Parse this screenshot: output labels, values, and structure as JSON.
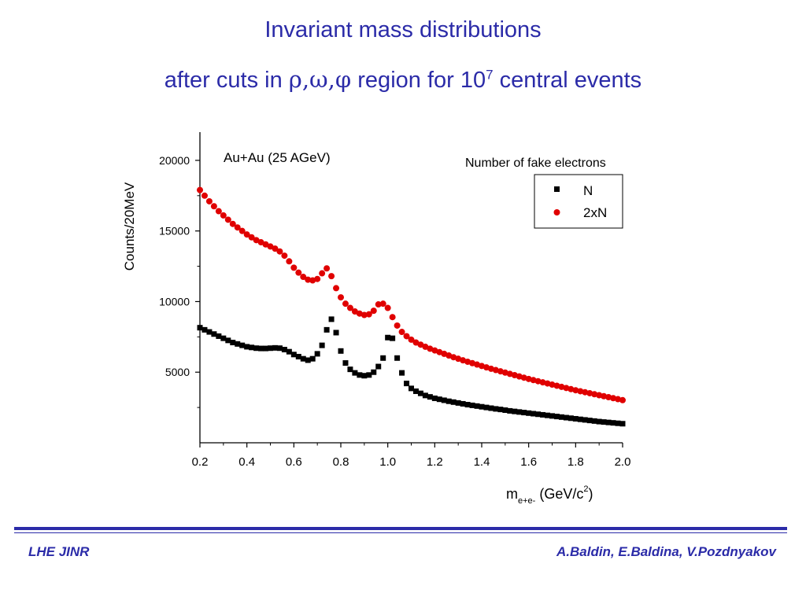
{
  "header": {
    "title_line1": "Invariant mass distributions",
    "title_line2_prefix": "after cuts in ",
    "title_greek": "ρ,ω,φ",
    "title_line2_mid": " region for 10",
    "title_exponent": "7",
    "title_line2_suffix": " central events"
  },
  "footer": {
    "left": "LHE JINR",
    "right": "A.Baldin, E.Baldina, V.Pozdnyakov"
  },
  "colors": {
    "title": "#2b2ba8",
    "series_N": "#000000",
    "series_2xN": "#e00000"
  },
  "chart_data": {
    "type": "scatter",
    "annotation": "Au+Au (25 AGeV)",
    "ylabel": "Counts/20MeV",
    "xlabel_main": "m",
    "xlabel_sub": "e+e-",
    "xlabel_unit": " (GeV/c",
    "xlabel_sup": "2",
    "xlabel_close": ")",
    "xlim": [
      0.2,
      2.0
    ],
    "ylim": [
      0,
      22000
    ],
    "xticks": [
      "0.2",
      "0.4",
      "0.6",
      "0.8",
      "1.0",
      "1.2",
      "1.4",
      "1.6",
      "1.8",
      "2.0"
    ],
    "yticks": [
      "5000",
      "10000",
      "15000",
      "20000"
    ],
    "legend_title": "Number of fake electrons",
    "legend_placement": "top-right",
    "series": [
      {
        "name": "N",
        "marker": "square",
        "x": [
          0.2,
          0.22,
          0.24,
          0.26,
          0.28,
          0.3,
          0.32,
          0.34,
          0.36,
          0.38,
          0.4,
          0.42,
          0.44,
          0.46,
          0.48,
          0.5,
          0.52,
          0.54,
          0.56,
          0.58,
          0.6,
          0.62,
          0.64,
          0.66,
          0.68,
          0.7,
          0.72,
          0.74,
          0.76,
          0.78,
          0.8,
          0.82,
          0.84,
          0.86,
          0.88,
          0.9,
          0.92,
          0.94,
          0.96,
          0.98,
          1.0,
          1.02,
          1.04,
          1.06,
          1.08,
          1.1,
          1.12,
          1.14,
          1.16,
          1.18,
          1.2,
          1.22,
          1.24,
          1.26,
          1.28,
          1.3,
          1.32,
          1.34,
          1.36,
          1.38,
          1.4,
          1.42,
          1.44,
          1.46,
          1.48,
          1.5,
          1.52,
          1.54,
          1.56,
          1.58,
          1.6,
          1.62,
          1.64,
          1.66,
          1.68,
          1.7,
          1.72,
          1.74,
          1.76,
          1.78,
          1.8,
          1.82,
          1.84,
          1.86,
          1.88,
          1.9,
          1.92,
          1.94,
          1.96,
          1.98,
          2.0
        ],
        "y": [
          8150,
          8000,
          7850,
          7700,
          7550,
          7400,
          7250,
          7100,
          7000,
          6900,
          6800,
          6750,
          6700,
          6680,
          6680,
          6700,
          6720,
          6700,
          6600,
          6450,
          6250,
          6100,
          5950,
          5850,
          5950,
          6300,
          6900,
          8000,
          8750,
          7800,
          6500,
          5650,
          5200,
          4950,
          4800,
          4750,
          4800,
          5000,
          5400,
          6000,
          7450,
          7400,
          6000,
          4950,
          4200,
          3850,
          3650,
          3500,
          3350,
          3250,
          3150,
          3080,
          3010,
          2940,
          2880,
          2820,
          2760,
          2700,
          2650,
          2600,
          2550,
          2500,
          2450,
          2400,
          2360,
          2310,
          2260,
          2220,
          2180,
          2140,
          2100,
          2060,
          2020,
          1980,
          1940,
          1900,
          1860,
          1820,
          1780,
          1740,
          1700,
          1660,
          1620,
          1580,
          1540,
          1500,
          1470,
          1440,
          1410,
          1380,
          1350
        ]
      },
      {
        "name": "2xN",
        "marker": "circle",
        "x": [
          0.2,
          0.22,
          0.24,
          0.26,
          0.28,
          0.3,
          0.32,
          0.34,
          0.36,
          0.38,
          0.4,
          0.42,
          0.44,
          0.46,
          0.48,
          0.5,
          0.52,
          0.54,
          0.56,
          0.58,
          0.6,
          0.62,
          0.64,
          0.66,
          0.68,
          0.7,
          0.72,
          0.74,
          0.76,
          0.78,
          0.8,
          0.82,
          0.84,
          0.86,
          0.88,
          0.9,
          0.92,
          0.94,
          0.96,
          0.98,
          1.0,
          1.02,
          1.04,
          1.06,
          1.08,
          1.1,
          1.12,
          1.14,
          1.16,
          1.18,
          1.2,
          1.22,
          1.24,
          1.26,
          1.28,
          1.3,
          1.32,
          1.34,
          1.36,
          1.38,
          1.4,
          1.42,
          1.44,
          1.46,
          1.48,
          1.5,
          1.52,
          1.54,
          1.56,
          1.58,
          1.6,
          1.62,
          1.64,
          1.66,
          1.68,
          1.7,
          1.72,
          1.74,
          1.76,
          1.78,
          1.8,
          1.82,
          1.84,
          1.86,
          1.88,
          1.9,
          1.92,
          1.94,
          1.96,
          1.98,
          2.0
        ],
        "y": [
          17900,
          17500,
          17100,
          16750,
          16400,
          16100,
          15800,
          15500,
          15250,
          15000,
          14750,
          14550,
          14350,
          14200,
          14050,
          13900,
          13750,
          13550,
          13250,
          12850,
          12400,
          12050,
          11750,
          11550,
          11500,
          11600,
          12000,
          12350,
          11800,
          10950,
          10300,
          9850,
          9550,
          9300,
          9150,
          9050,
          9100,
          9350,
          9800,
          9850,
          9550,
          8900,
          8300,
          7850,
          7550,
          7300,
          7100,
          6950,
          6800,
          6660,
          6540,
          6420,
          6300,
          6180,
          6060,
          5950,
          5840,
          5740,
          5640,
          5540,
          5440,
          5340,
          5240,
          5150,
          5060,
          4970,
          4880,
          4790,
          4700,
          4610,
          4520,
          4440,
          4360,
          4280,
          4200,
          4120,
          4040,
          3960,
          3880,
          3800,
          3720,
          3650,
          3580,
          3510,
          3440,
          3370,
          3300,
          3230,
          3160,
          3090,
          3020
        ]
      }
    ]
  }
}
